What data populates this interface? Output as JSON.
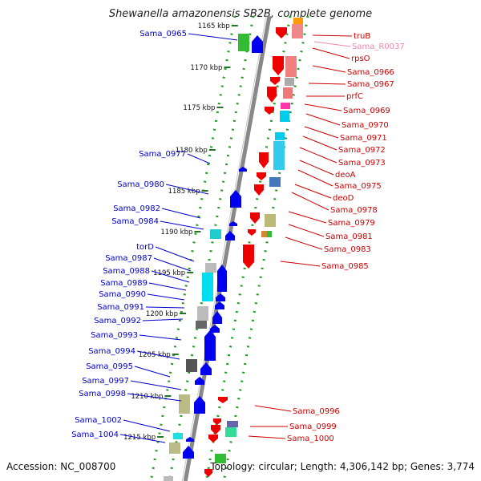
{
  "title": "Shewanella amazonensis SB2B, complete genome",
  "footer": {
    "accession": "Accession: NC_008700",
    "topology": "Topology: circular; Length: 4,306,142 bp; Genes: 3,774"
  },
  "scale_ticks": [
    "1165 kbp",
    "1170 kbp",
    "1175 kbp",
    "1180 kbp",
    "1185 kbp",
    "1190 kbp",
    "1195 kbp",
    "1200 kbp",
    "1205 kbp",
    "1210 kbp",
    "1215 kbp"
  ],
  "left_labels": [
    "Sama_0965",
    "Sama_0977",
    "Sama_0980",
    "Sama_0982",
    "Sama_0984",
    "torD",
    "Sama_0987",
    "Sama_0988",
    "Sama_0989",
    "Sama_0990",
    "Sama_0991",
    "Sama_0992",
    "Sama_0993",
    "Sama_0994",
    "Sama_0995",
    "Sama_0997",
    "Sama_0998",
    "Sama_1002",
    "Sama_1004"
  ],
  "right_labels": [
    {
      "text": "truB",
      "color": "#cc0000"
    },
    {
      "text": "Sama_R0037",
      "color": "#ee88aa"
    },
    {
      "text": "rpsO",
      "color": "#cc0000"
    },
    {
      "text": "Sama_0966",
      "color": "#cc0000"
    },
    {
      "text": "Sama_0967",
      "color": "#cc0000"
    },
    {
      "text": "prfC",
      "color": "#cc0000"
    },
    {
      "text": "Sama_0969",
      "color": "#cc0000"
    },
    {
      "text": "Sama_0970",
      "color": "#cc0000"
    },
    {
      "text": "Sama_0971",
      "color": "#cc0000"
    },
    {
      "text": "Sama_0972",
      "color": "#cc0000"
    },
    {
      "text": "Sama_0973",
      "color": "#cc0000"
    },
    {
      "text": "deoA",
      "color": "#cc0000"
    },
    {
      "text": "Sama_0975",
      "color": "#cc0000"
    },
    {
      "text": "deoD",
      "color": "#cc0000"
    },
    {
      "text": "Sama_0978",
      "color": "#cc0000"
    },
    {
      "text": "Sama_0979",
      "color": "#cc0000"
    },
    {
      "text": "Sama_0981",
      "color": "#cc0000"
    },
    {
      "text": "Sama_0983",
      "color": "#cc0000"
    },
    {
      "text": "Sama_0985",
      "color": "#cc0000"
    },
    {
      "text": "Sama_0996",
      "color": "#cc0000"
    },
    {
      "text": "Sama_0999",
      "color": "#cc0000"
    },
    {
      "text": "Sama_1000",
      "color": "#cc0000"
    }
  ],
  "colors": {
    "forward_strand": "#0000ee",
    "reverse_strand": "#ee0000",
    "left_label": "#0000cc",
    "right_label": "#cc0000",
    "backbone": "#888888",
    "cog_ticks": "#229922"
  }
}
